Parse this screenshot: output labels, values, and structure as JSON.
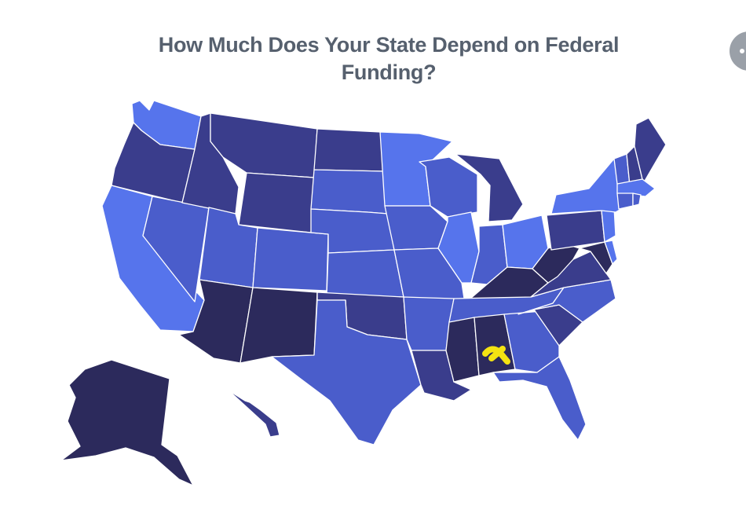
{
  "title": "How Much Does Your State Depend on Federal Funding?",
  "colors": {
    "very_high": "#2c2a5c",
    "high": "#3a3d8c",
    "medium": "#4a5dcb",
    "low": "#5674ec",
    "highlight": "#f4e312"
  },
  "states": [
    {
      "name": "Washington",
      "tier": "low"
    },
    {
      "name": "Oregon",
      "tier": "high"
    },
    {
      "name": "California",
      "tier": "low"
    },
    {
      "name": "Nevada",
      "tier": "medium"
    },
    {
      "name": "Idaho",
      "tier": "high"
    },
    {
      "name": "Montana",
      "tier": "high"
    },
    {
      "name": "Wyoming",
      "tier": "high"
    },
    {
      "name": "Utah",
      "tier": "medium"
    },
    {
      "name": "Arizona",
      "tier": "very_high"
    },
    {
      "name": "Colorado",
      "tier": "medium"
    },
    {
      "name": "New Mexico",
      "tier": "very_high"
    },
    {
      "name": "North Dakota",
      "tier": "high"
    },
    {
      "name": "South Dakota",
      "tier": "medium"
    },
    {
      "name": "Nebraska",
      "tier": "medium"
    },
    {
      "name": "Kansas",
      "tier": "medium"
    },
    {
      "name": "Oklahoma",
      "tier": "high"
    },
    {
      "name": "Texas",
      "tier": "medium"
    },
    {
      "name": "Minnesota",
      "tier": "low"
    },
    {
      "name": "Iowa",
      "tier": "medium"
    },
    {
      "name": "Missouri",
      "tier": "medium"
    },
    {
      "name": "Arkansas",
      "tier": "medium"
    },
    {
      "name": "Louisiana",
      "tier": "high"
    },
    {
      "name": "Wisconsin",
      "tier": "medium"
    },
    {
      "name": "Illinois",
      "tier": "low"
    },
    {
      "name": "Michigan",
      "tier": "high"
    },
    {
      "name": "Indiana",
      "tier": "medium"
    },
    {
      "name": "Ohio",
      "tier": "low"
    },
    {
      "name": "Kentucky",
      "tier": "very_high"
    },
    {
      "name": "Tennessee",
      "tier": "medium"
    },
    {
      "name": "Mississippi",
      "tier": "very_high"
    },
    {
      "name": "Alabama",
      "tier": "very_high"
    },
    {
      "name": "Georgia",
      "tier": "medium"
    },
    {
      "name": "Florida",
      "tier": "medium"
    },
    {
      "name": "South Carolina",
      "tier": "high"
    },
    {
      "name": "North Carolina",
      "tier": "medium"
    },
    {
      "name": "Virginia",
      "tier": "high"
    },
    {
      "name": "West Virginia",
      "tier": "very_high"
    },
    {
      "name": "Pennsylvania",
      "tier": "high"
    },
    {
      "name": "New York",
      "tier": "low"
    },
    {
      "name": "Vermont",
      "tier": "medium"
    },
    {
      "name": "New Hampshire",
      "tier": "high"
    },
    {
      "name": "Maine",
      "tier": "high"
    },
    {
      "name": "Massachusetts",
      "tier": "low"
    },
    {
      "name": "Connecticut",
      "tier": "medium"
    },
    {
      "name": "Rhode Island",
      "tier": "medium"
    },
    {
      "name": "New Jersey",
      "tier": "low"
    },
    {
      "name": "Delaware",
      "tier": "low"
    },
    {
      "name": "Maryland",
      "tier": "very_high"
    },
    {
      "name": "Alaska",
      "tier": "very_high"
    },
    {
      "name": "Hawaii",
      "tier": "high"
    }
  ]
}
